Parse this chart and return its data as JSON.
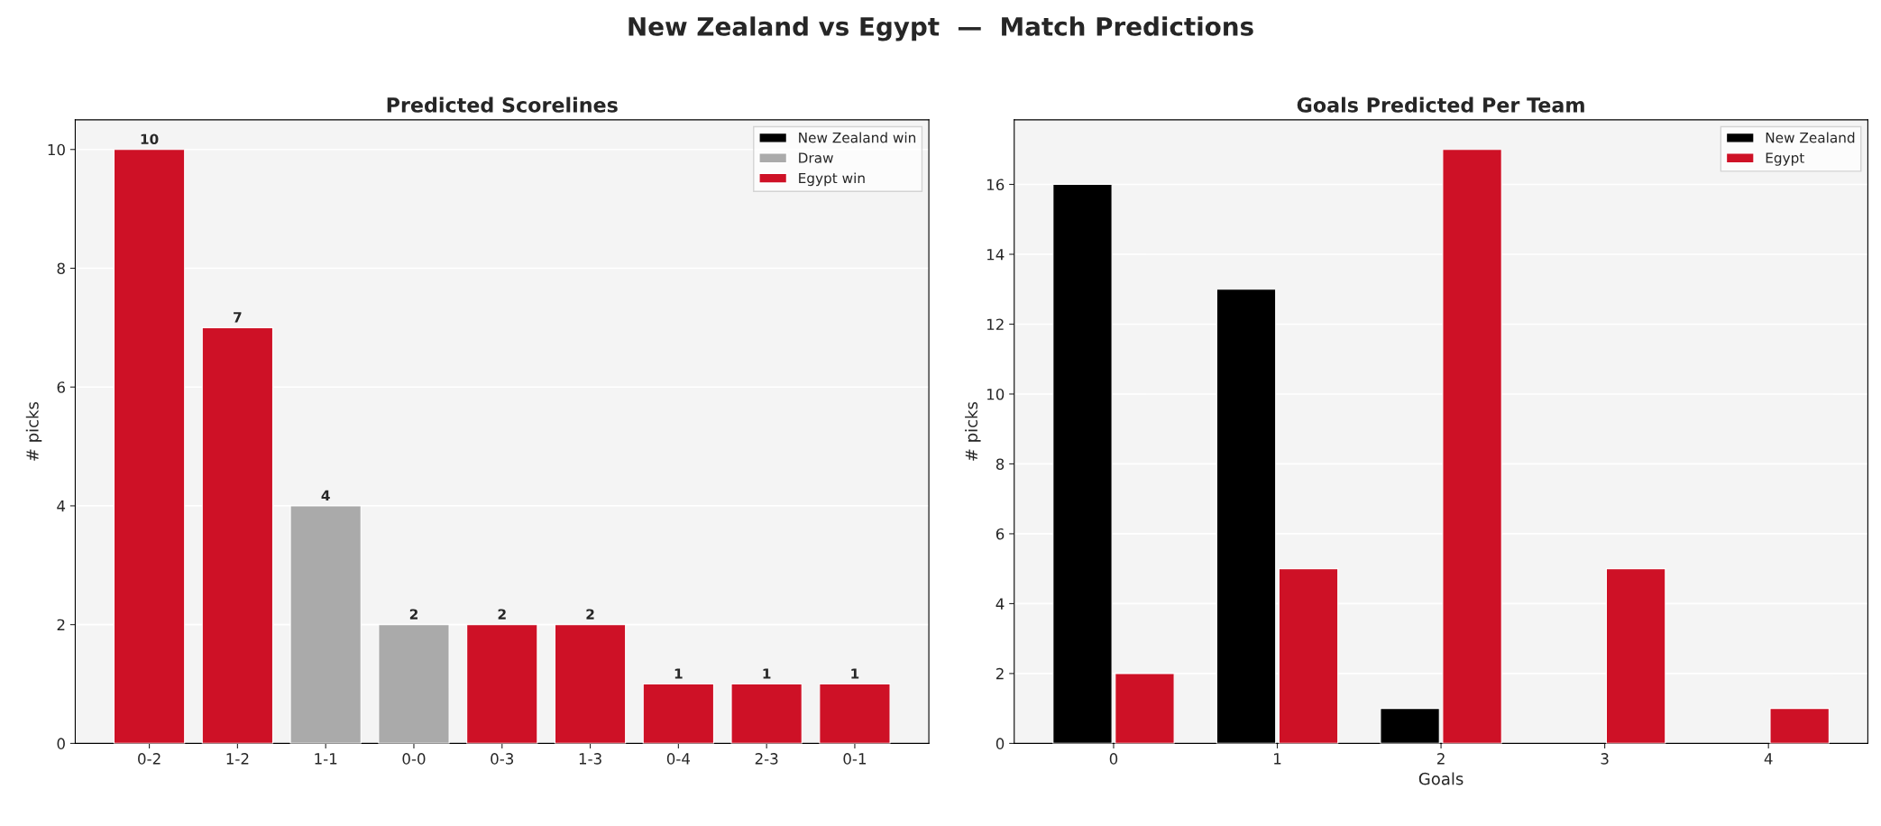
{
  "chart_data": [
    {
      "type": "bar",
      "annotations": [
        "New Zealand vs Egypt  —  Match Predictions"
      ],
      "title": "Predicted Scorelines",
      "ylabel": "# picks",
      "categories": [
        "0-2",
        "1-2",
        "1-1",
        "0-0",
        "0-3",
        "1-3",
        "0-4",
        "2-3",
        "0-1"
      ],
      "stacked": true,
      "series": [
        {
          "name": "New Zealand win",
          "color": "#000000",
          "values": [
            null,
            null,
            null,
            null,
            null,
            null,
            null,
            null,
            null
          ]
        },
        {
          "name": "Draw",
          "color": "#aaaaaa",
          "values": [
            null,
            null,
            4,
            2,
            null,
            null,
            null,
            null,
            null
          ]
        },
        {
          "name": "Egypt win",
          "color": "#ce1126",
          "values": [
            10,
            7,
            null,
            null,
            2,
            2,
            1,
            1,
            1
          ]
        }
      ],
      "ylim": [
        0,
        10.5
      ],
      "yticks": [
        0,
        2,
        4,
        6,
        8,
        10
      ],
      "grid": "y",
      "legend": "top right",
      "data_labels": true
    },
    {
      "type": "bar",
      "title": "Goals Predicted Per Team",
      "xlabel": "Goals",
      "ylabel": "# picks",
      "categories": [
        "0",
        "1",
        "2",
        "3",
        "4"
      ],
      "series": [
        {
          "name": "New Zealand",
          "color": "#000000",
          "values": [
            16,
            13,
            1,
            null,
            null
          ]
        },
        {
          "name": "Egypt",
          "color": "#ce1126",
          "values": [
            2,
            5,
            17,
            5,
            1
          ]
        }
      ],
      "ylim": [
        0,
        17.85
      ],
      "yticks": [
        0,
        2,
        4,
        6,
        8,
        10,
        12,
        14,
        16
      ],
      "grid": "y",
      "legend": "top right"
    }
  ]
}
